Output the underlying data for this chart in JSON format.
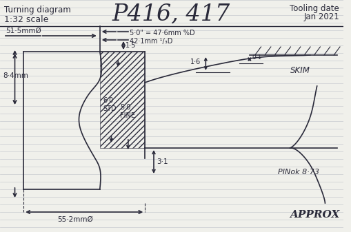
{
  "bg_color": "#f0f0eb",
  "line_color": "#2a2a3a",
  "hline_color": "#c8ccd0",
  "title_text": "P416, 417",
  "top_left_line1": "Turning diagram",
  "top_left_line2": "1:32 scale",
  "top_right_line1": "Tooling date",
  "top_right_line2": "Jan 2021",
  "dim_51": "51·5mmØ",
  "dim_50": "5·0\" = 47·6mm %ᴅ",
  "dim_42": "42·1mm ¹⁄₃D",
  "dim_84": "8·4mm",
  "dim_15": "1·5",
  "dim_60_std": "6·0\nSTD",
  "dim_50_fine": "5·0\nFINE",
  "dim_31": "3·1",
  "dim_01": "0·1",
  "dim_16": "1·6",
  "dim_552": "55·2mmØ",
  "label_skim": "SKIM",
  "label_pin": "PINok 8·73",
  "label_approx": "APPROX",
  "note_50": "5·0\" = 47·6mm %D",
  "note_42": "42·1mm ¹⁄₃D"
}
